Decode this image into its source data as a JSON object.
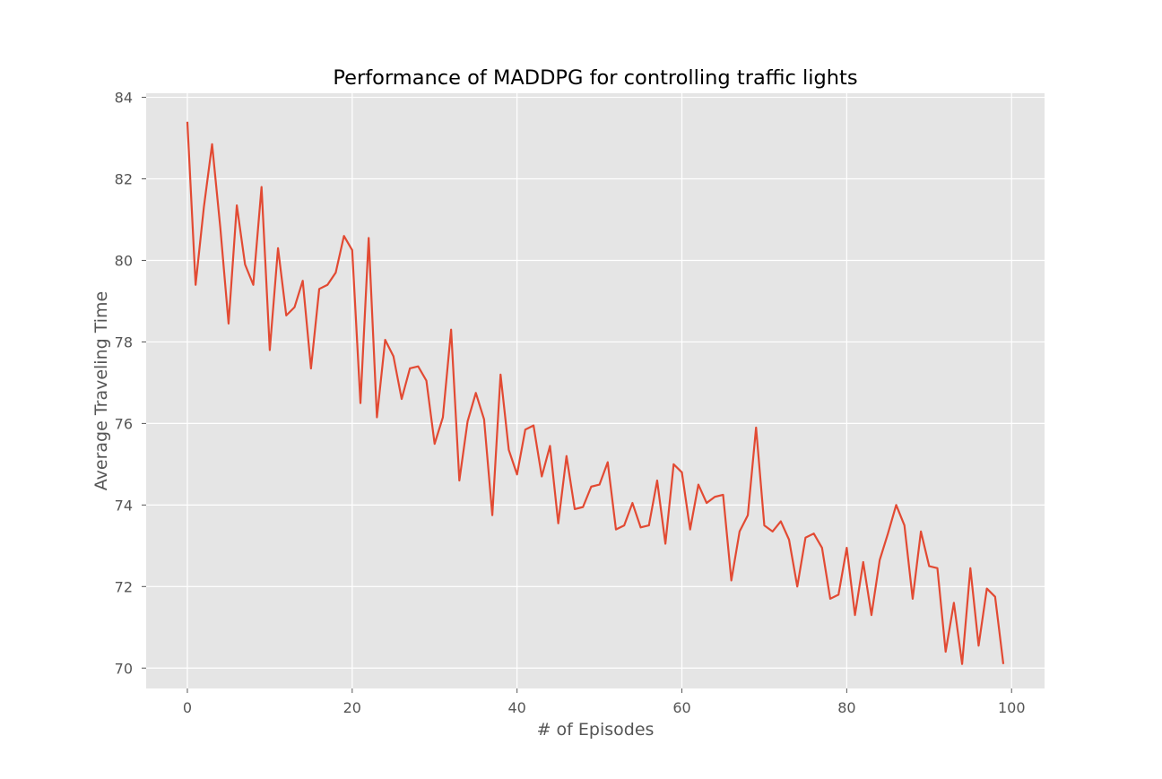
{
  "chart_data": {
    "type": "line",
    "title": "Performance of MADDPG for controlling traffic lights",
    "xlabel": "# of Episodes",
    "ylabel": "Average Traveling Time",
    "xlim": [
      -5,
      104
    ],
    "ylim": [
      69.5,
      84.1
    ],
    "xticks": [
      0,
      20,
      40,
      60,
      80,
      100
    ],
    "yticks": [
      70,
      72,
      74,
      76,
      78,
      80,
      82,
      84
    ],
    "grid": true,
    "background": "#e5e5e5",
    "series": [
      {
        "color": "#e24a33",
        "x": [
          0,
          1,
          2,
          3,
          4,
          5,
          6,
          7,
          8,
          9,
          10,
          11,
          12,
          13,
          14,
          15,
          16,
          17,
          18,
          19,
          20,
          21,
          22,
          23,
          24,
          25,
          26,
          27,
          28,
          29,
          30,
          31,
          32,
          33,
          34,
          35,
          36,
          37,
          38,
          39,
          40,
          41,
          42,
          43,
          44,
          45,
          46,
          47,
          48,
          49,
          50,
          51,
          52,
          53,
          54,
          55,
          56,
          57,
          58,
          59,
          60,
          61,
          62,
          63,
          64,
          65,
          66,
          67,
          68,
          69,
          70,
          71,
          72,
          73,
          74,
          75,
          76,
          77,
          78,
          79,
          80,
          81,
          82,
          83,
          84,
          85,
          86,
          87,
          88,
          89,
          90,
          91,
          92,
          93,
          94,
          95,
          96,
          97,
          98,
          99
        ],
        "values": [
          83.4,
          79.4,
          81.3,
          82.85,
          80.8,
          78.45,
          81.35,
          79.9,
          79.4,
          81.8,
          77.8,
          80.3,
          78.65,
          78.85,
          79.5,
          77.35,
          79.3,
          79.4,
          79.7,
          80.6,
          80.25,
          76.5,
          80.55,
          76.15,
          78.05,
          77.65,
          76.6,
          77.35,
          77.4,
          77.05,
          75.5,
          76.15,
          78.3,
          74.6,
          76.05,
          76.75,
          76.1,
          73.75,
          77.2,
          75.35,
          74.75,
          75.85,
          75.95,
          74.7,
          75.45,
          73.55,
          75.2,
          73.9,
          73.95,
          74.45,
          74.5,
          75.05,
          73.4,
          73.5,
          74.05,
          73.45,
          73.5,
          74.6,
          73.05,
          75.0,
          74.8,
          73.4,
          74.5,
          74.05,
          74.2,
          74.25,
          72.15,
          73.35,
          73.75,
          75.9,
          73.5,
          73.35,
          73.6,
          73.15,
          72.0,
          73.2,
          73.3,
          72.95,
          71.7,
          71.8,
          72.95,
          71.3,
          72.6,
          71.3,
          72.65,
          73.3,
          74.0,
          73.5,
          71.7,
          73.35,
          72.5,
          72.45,
          70.4,
          71.6,
          70.1,
          72.45,
          70.55,
          71.95,
          71.75,
          70.1
        ]
      }
    ]
  }
}
